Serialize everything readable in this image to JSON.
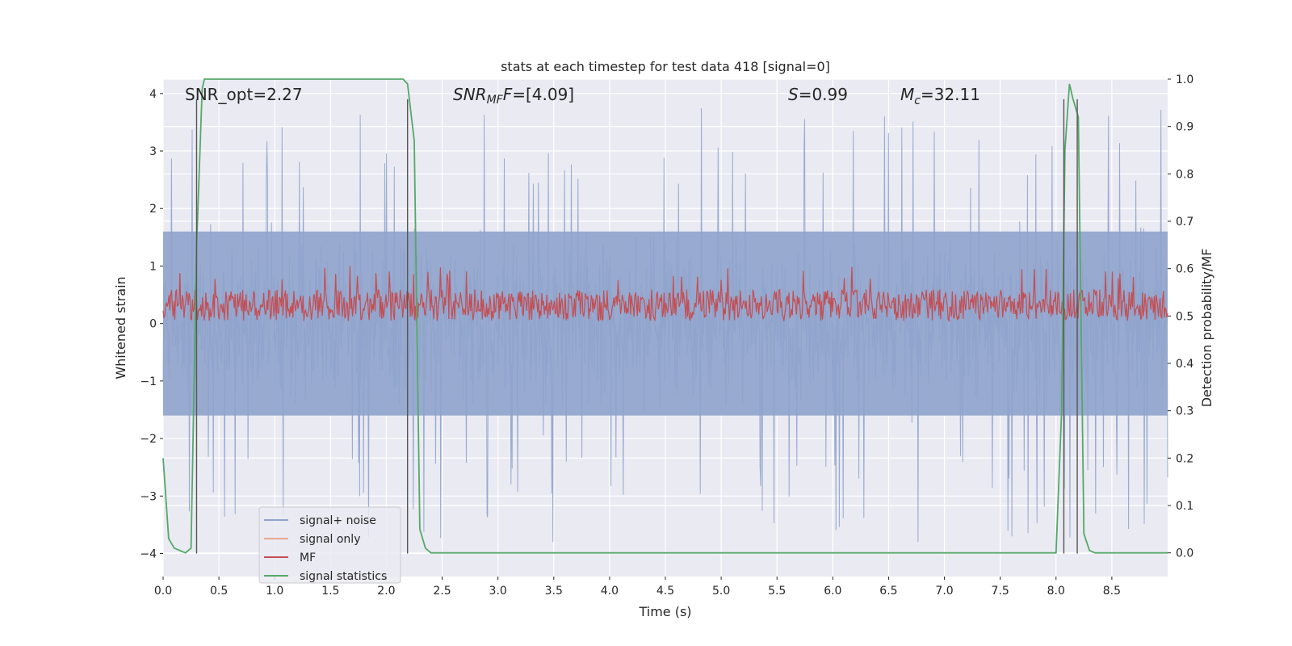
{
  "chart_data": {
    "type": "line",
    "title": "stats at each timestep for test data 418 [signal=0]",
    "xlabel": "Time (s)",
    "ylabel_left": "Whitened strain",
    "ylabel_right": "Detection probability/MF",
    "xlim": [
      0.0,
      9.0
    ],
    "ylim_left": [
      -4.4,
      4.25
    ],
    "ylim_right": [
      -0.05,
      1.0
    ],
    "x_ticks": [
      "0.0",
      "0.5",
      "1.0",
      "1.5",
      "2.0",
      "2.5",
      "3.0",
      "3.5",
      "4.0",
      "4.5",
      "5.0",
      "5.5",
      "6.0",
      "6.5",
      "7.0",
      "7.5",
      "8.0",
      "8.5"
    ],
    "x_tick_values": [
      0.0,
      0.5,
      1.0,
      1.5,
      2.0,
      2.5,
      3.0,
      3.5,
      4.0,
      4.5,
      5.0,
      5.5,
      6.0,
      6.5,
      7.0,
      7.5,
      8.0,
      8.5
    ],
    "y_ticks_left": [
      "−4",
      "−3",
      "−2",
      "−1",
      "0",
      "1",
      "2",
      "3",
      "4"
    ],
    "y_tick_values_left": [
      -4,
      -3,
      -2,
      -1,
      0,
      1,
      2,
      3,
      4
    ],
    "y_ticks_right": [
      "0.0",
      "0.1",
      "0.2",
      "0.3",
      "0.4",
      "0.5",
      "0.6",
      "0.7",
      "0.8",
      "0.9",
      "1.0"
    ],
    "y_tick_values_right": [
      0.0,
      0.1,
      0.2,
      0.3,
      0.4,
      0.5,
      0.6,
      0.7,
      0.8,
      0.9,
      1.0
    ],
    "annotations": {
      "snr_opt": "SNR_opt=2.27",
      "snr_mf_main": "SNR",
      "snr_mf_sub": "MF",
      "snr_mf_value": "=[4.09]",
      "s_main": "S",
      "s_value": "=0.99",
      "mc_main": "M",
      "mc_sub": "c",
      "mc_value": "=32.11"
    },
    "legend": [
      {
        "label": "signal+ noise",
        "color": "#8fa3cc"
      },
      {
        "label": "signal only",
        "color": "#e9a98d"
      },
      {
        "label": "MF",
        "color": "#c44e52"
      },
      {
        "label": "signal statistics",
        "color": "#55a868"
      }
    ],
    "series": [
      {
        "name": "signal statistics",
        "axis": "right",
        "x": [
          0.0,
          0.05,
          0.1,
          0.15,
          0.2,
          0.25,
          0.3,
          0.35,
          0.37,
          0.4,
          0.5,
          1.0,
          1.5,
          2.0,
          2.1,
          2.15,
          2.19,
          2.25,
          2.3,
          2.35,
          2.4,
          2.5,
          3.0,
          4.0,
          5.0,
          6.0,
          7.0,
          7.5,
          7.9,
          8.0,
          8.05,
          8.08,
          8.12,
          8.15,
          8.2,
          8.25,
          8.3,
          8.35,
          8.5,
          9.0
        ],
        "y": [
          0.2,
          0.03,
          0.01,
          0.005,
          0.0,
          0.01,
          0.65,
          0.98,
          1.0,
          1.0,
          1.0,
          1.0,
          1.0,
          1.0,
          1.0,
          1.0,
          0.99,
          0.87,
          0.05,
          0.01,
          0.0,
          0.0,
          0.0,
          0.0,
          0.0,
          0.0,
          0.0,
          0.0,
          0.0,
          0.0,
          0.3,
          0.85,
          0.99,
          0.96,
          0.92,
          0.04,
          0.005,
          0.0,
          0.0,
          0.0
        ]
      }
    ],
    "noise_series": {
      "name": "signal+ noise",
      "axis": "left",
      "band_min": -1.6,
      "band_max": 1.6,
      "peak_range": [
        -4.0,
        3.9
      ]
    },
    "mf_series": {
      "name": "MF",
      "axis": "left",
      "band_min": 0.0,
      "band_max": 0.75,
      "peak_max": 1.0
    },
    "vlines": {
      "x": [
        0.3,
        2.19,
        8.07,
        8.19
      ],
      "ymin_left": -4.0,
      "ymax_left": 3.9,
      "color": "#555555"
    }
  }
}
